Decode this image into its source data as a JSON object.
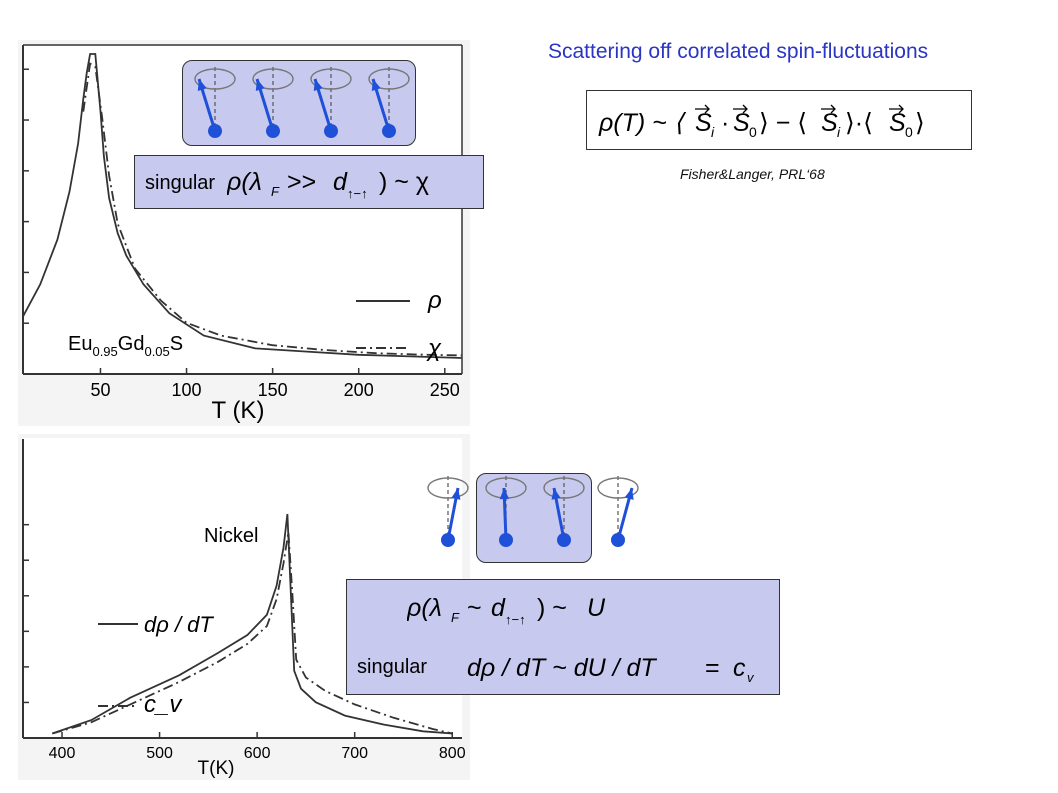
{
  "slide": {
    "title": "Scattering off correlated spin-fluctuations",
    "formula_top": "ρ(T) ~ ⟨S⃗ᵢ·S⃗₀⟩ − ⟨S⃗ᵢ⟩·⟨S⃗₀⟩",
    "citation": "Fisher&Langer,  PRL‘68",
    "top_box": {
      "label": "singular",
      "formula": "ρ(λ_F >> d_{↑−↑}) ~ χ"
    },
    "bottom_box": {
      "formula_1": "ρ(λ_F ~ d_{↑−↑}) ~ U",
      "label": "singular",
      "formula_2": "dρ / dT ~ dU / dT = c_v"
    },
    "colors": {
      "title": "#2a35c4",
      "box_fill": "#c7c9ee",
      "spin": "#1e50d8"
    }
  },
  "chart_data": [
    {
      "type": "line",
      "material_label": {
        "base1": "Eu",
        "sub1": "0.95",
        "base2": "Gd",
        "sub2": "0.05",
        "base3": "S"
      },
      "xlabel": "T (K)",
      "xlim": [
        5,
        260
      ],
      "xticks": [
        "50",
        "100",
        "150",
        "200",
        "250"
      ],
      "ylim": [
        0,
        1
      ],
      "legend_position": "bottom-right",
      "series": [
        {
          "name": "ρ",
          "style": "solid",
          "x": [
            5,
            15,
            25,
            32,
            37,
            40,
            42,
            44,
            47,
            50,
            52,
            55,
            60,
            65,
            75,
            90,
            110,
            140,
            170,
            200,
            230,
            260
          ],
          "y": [
            0.18,
            0.28,
            0.42,
            0.57,
            0.72,
            0.86,
            0.94,
            1.0,
            1.0,
            0.82,
            0.68,
            0.55,
            0.44,
            0.37,
            0.28,
            0.19,
            0.12,
            0.08,
            0.07,
            0.06,
            0.055,
            0.05
          ]
        },
        {
          "name": "χ",
          "style": "dash-dot",
          "x": [
            40,
            44,
            47,
            51,
            55,
            60,
            70,
            85,
            100,
            120,
            150,
            180,
            210,
            240,
            260
          ],
          "y": [
            0.82,
            0.97,
            0.96,
            0.8,
            0.62,
            0.47,
            0.33,
            0.23,
            0.16,
            0.12,
            0.09,
            0.075,
            0.065,
            0.06,
            0.058
          ]
        }
      ]
    },
    {
      "type": "line",
      "material_label": "Nickel",
      "xlabel": "T(K)",
      "xlim": [
        360,
        810
      ],
      "xticks": [
        "400",
        "500",
        "600",
        "700",
        "800"
      ],
      "ylim": [
        0,
        1
      ],
      "legend_position": "bottom-left",
      "series": [
        {
          "name": "dρ / dT",
          "style": "solid",
          "x": [
            390,
            430,
            470,
            520,
            560,
            590,
            610,
            620,
            627,
            631,
            634,
            638,
            645,
            660,
            690,
            730,
            770,
            800
          ],
          "y": [
            0.02,
            0.08,
            0.18,
            0.28,
            0.38,
            0.46,
            0.55,
            0.68,
            0.85,
            1.0,
            0.7,
            0.3,
            0.22,
            0.16,
            0.1,
            0.06,
            0.03,
            0.02
          ]
        },
        {
          "name": "c_v",
          "style": "dash-dot",
          "x": [
            390,
            430,
            470,
            520,
            560,
            590,
            610,
            620,
            627,
            632,
            636,
            640,
            650,
            670,
            700,
            740,
            780,
            800
          ],
          "y": [
            0.02,
            0.07,
            0.15,
            0.25,
            0.34,
            0.42,
            0.5,
            0.62,
            0.78,
            0.92,
            0.65,
            0.35,
            0.27,
            0.21,
            0.15,
            0.09,
            0.04,
            0.02
          ]
        }
      ]
    }
  ]
}
